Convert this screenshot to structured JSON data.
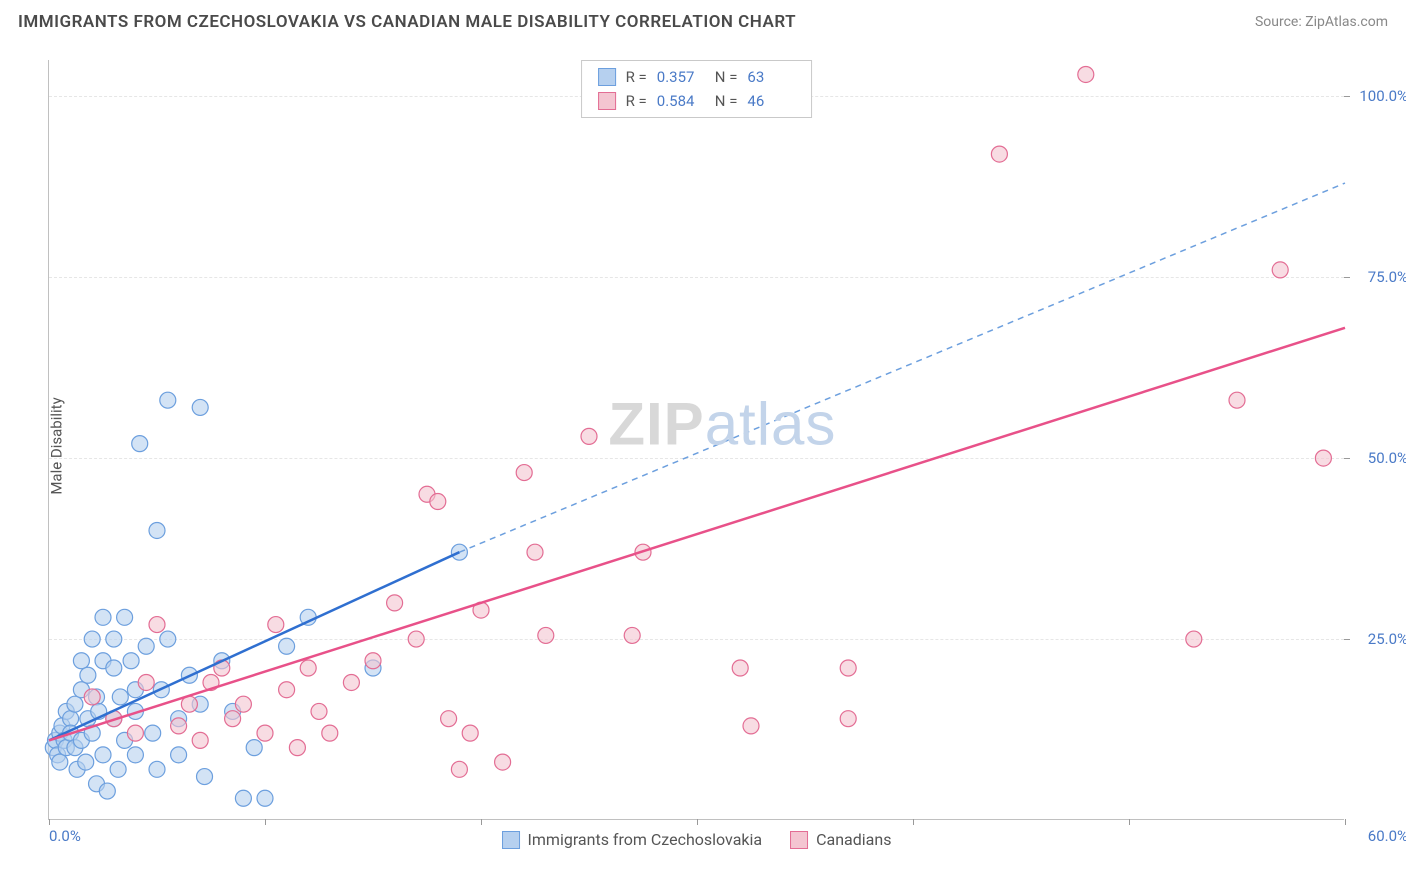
{
  "header": {
    "title": "IMMIGRANTS FROM CZECHOSLOVAKIA VS CANADIAN MALE DISABILITY CORRELATION CHART",
    "source_label": "Source: ",
    "source_name": "ZipAtlas.com"
  },
  "chart": {
    "type": "scatter",
    "ylabel": "Male Disability",
    "xlim": [
      0,
      60
    ],
    "ylim": [
      0,
      105
    ],
    "background_color": "#ffffff",
    "grid_color": "#e6e6e6",
    "axis_color": "#c0c0c0",
    "tick_color": "#4a7ac7",
    "x_ticks": [
      0,
      10,
      20,
      30,
      40,
      50,
      60
    ],
    "x_tick_labels_shown": {
      "0": "0.0%",
      "60": "60.0%"
    },
    "y_ticks": [
      25,
      50,
      75,
      100
    ],
    "y_tick_labels": {
      "25": "25.0%",
      "50": "50.0%",
      "75": "75.0%",
      "100": "100.0%"
    },
    "series": [
      {
        "id": "czech",
        "name": "Immigrants from Czechoslovakia",
        "color_fill": "#b6d0ef",
        "color_stroke": "#6c9fde",
        "marker_radius": 8,
        "fill_opacity": 0.6,
        "trend": {
          "solid": {
            "x1": 0,
            "y1": 11,
            "x2": 19,
            "y2": 37,
            "color": "#2f6fd0",
            "width": 2.5
          },
          "dashed": {
            "x1": 19,
            "y1": 37,
            "x2": 60,
            "y2": 88,
            "color": "#6c9fde",
            "width": 1.5,
            "dash": "6 5"
          }
        },
        "points": [
          [
            0.2,
            10
          ],
          [
            0.3,
            11
          ],
          [
            0.4,
            9
          ],
          [
            0.5,
            12
          ],
          [
            0.5,
            8
          ],
          [
            0.6,
            13
          ],
          [
            0.7,
            11
          ],
          [
            0.8,
            10
          ],
          [
            0.8,
            15
          ],
          [
            1,
            14
          ],
          [
            1,
            12
          ],
          [
            1.2,
            16
          ],
          [
            1.2,
            10
          ],
          [
            1.3,
            7
          ],
          [
            1.5,
            18
          ],
          [
            1.5,
            11
          ],
          [
            1.5,
            22
          ],
          [
            1.7,
            8
          ],
          [
            1.8,
            14
          ],
          [
            1.8,
            20
          ],
          [
            2,
            25
          ],
          [
            2,
            12
          ],
          [
            2.2,
            17
          ],
          [
            2.2,
            5
          ],
          [
            2.3,
            15
          ],
          [
            2.5,
            22
          ],
          [
            2.5,
            9
          ],
          [
            2.5,
            28
          ],
          [
            2.7,
            4
          ],
          [
            3,
            14
          ],
          [
            3,
            21
          ],
          [
            3,
            25
          ],
          [
            3.2,
            7
          ],
          [
            3.3,
            17
          ],
          [
            3.5,
            11
          ],
          [
            3.5,
            28
          ],
          [
            3.8,
            22
          ],
          [
            4,
            15
          ],
          [
            4,
            9
          ],
          [
            4,
            18
          ],
          [
            4.2,
            52
          ],
          [
            4.5,
            24
          ],
          [
            4.8,
            12
          ],
          [
            5,
            7
          ],
          [
            5,
            40
          ],
          [
            5.2,
            18
          ],
          [
            5.5,
            25
          ],
          [
            5.5,
            58
          ],
          [
            6,
            14
          ],
          [
            6,
            9
          ],
          [
            6.5,
            20
          ],
          [
            7,
            57
          ],
          [
            7,
            16
          ],
          [
            7.2,
            6
          ],
          [
            8,
            22
          ],
          [
            8.5,
            15
          ],
          [
            9,
            3
          ],
          [
            9.5,
            10
          ],
          [
            10,
            3
          ],
          [
            11,
            24
          ],
          [
            12,
            28
          ],
          [
            15,
            21
          ],
          [
            19,
            37
          ]
        ]
      },
      {
        "id": "canadians",
        "name": "Canadians",
        "color_fill": "#f4c5d1",
        "color_stroke": "#e36d94",
        "marker_radius": 8,
        "fill_opacity": 0.6,
        "trend": {
          "solid": {
            "x1": 0,
            "y1": 11,
            "x2": 60,
            "y2": 68,
            "color": "#e85189",
            "width": 2.5
          }
        },
        "points": [
          [
            2,
            17
          ],
          [
            3,
            14
          ],
          [
            4,
            12
          ],
          [
            4.5,
            19
          ],
          [
            5,
            27
          ],
          [
            6,
            13
          ],
          [
            6.5,
            16
          ],
          [
            7,
            11
          ],
          [
            7.5,
            19
          ],
          [
            8,
            21
          ],
          [
            8.5,
            14
          ],
          [
            9,
            16
          ],
          [
            10,
            12
          ],
          [
            10.5,
            27
          ],
          [
            11,
            18
          ],
          [
            11.5,
            10
          ],
          [
            12,
            21
          ],
          [
            12.5,
            15
          ],
          [
            13,
            12
          ],
          [
            14,
            19
          ],
          [
            15,
            22
          ],
          [
            16,
            30
          ],
          [
            17,
            25
          ],
          [
            17.5,
            45
          ],
          [
            18,
            44
          ],
          [
            18.5,
            14
          ],
          [
            19,
            7
          ],
          [
            19.5,
            12
          ],
          [
            20,
            29
          ],
          [
            21,
            8
          ],
          [
            22,
            48
          ],
          [
            22.5,
            37
          ],
          [
            23,
            25.5
          ],
          [
            25,
            53
          ],
          [
            27,
            25.5
          ],
          [
            27.5,
            37
          ],
          [
            32,
            21
          ],
          [
            32.5,
            13
          ],
          [
            37,
            14
          ],
          [
            37,
            21
          ],
          [
            44,
            92
          ],
          [
            48,
            103
          ],
          [
            53,
            25
          ],
          [
            55,
            58
          ],
          [
            57,
            76
          ],
          [
            59,
            50
          ]
        ]
      }
    ],
    "legend_top": {
      "rows": [
        {
          "swatch_fill": "#b6d0ef",
          "swatch_stroke": "#6c9fde",
          "r_label": "R =",
          "r_value": "0.357",
          "n_label": "N =",
          "n_value": "63"
        },
        {
          "swatch_fill": "#f4c5d1",
          "swatch_stroke": "#e36d94",
          "r_label": "R =",
          "r_value": "0.584",
          "n_label": "N =",
          "n_value": "46"
        }
      ]
    },
    "legend_bottom": [
      {
        "swatch_fill": "#b6d0ef",
        "swatch_stroke": "#6c9fde",
        "label": "Immigrants from Czechoslovakia"
      },
      {
        "swatch_fill": "#f4c5d1",
        "swatch_stroke": "#e36d94",
        "label": "Canadians"
      }
    ],
    "watermark": {
      "part1": "ZIP",
      "part2": "atlas"
    }
  }
}
